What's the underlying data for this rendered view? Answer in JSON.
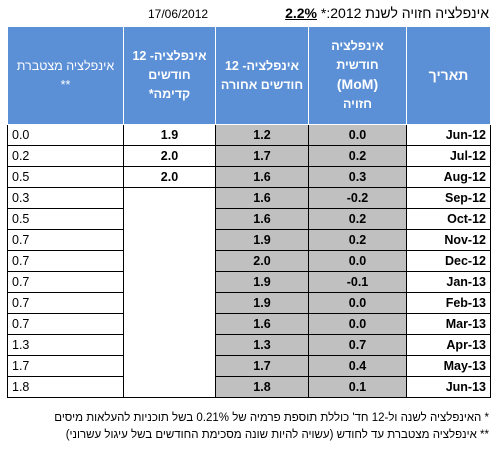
{
  "header": {
    "date": "17/06/2012",
    "title_text": "אינפלציה חזויה לשנת 2012:*",
    "title_pct": "2.2%"
  },
  "columns": {
    "cumulative": "אינפלציה מצטברת **",
    "forward12": "אינפלציה- 12 חודשים קדימה*",
    "back12": "אינפלציה- 12 חודשים אחורה",
    "mom_line1": "אינפלציה חודשית",
    "mom_line2": "(MoM)",
    "mom_line3": "חזויה",
    "date": "תאריך"
  },
  "rows": [
    {
      "cumulative": "0.0",
      "forward12": "1.9",
      "back12": "1.2",
      "mom": "0.0",
      "date": "Jun-12"
    },
    {
      "cumulative": "0.2",
      "forward12": "2.0",
      "back12": "1.7",
      "mom": "0.2",
      "date": "Jul-12"
    },
    {
      "cumulative": "0.5",
      "forward12": "2.0",
      "back12": "1.6",
      "mom": "0.3",
      "date": "Aug-12"
    },
    {
      "cumulative": "0.3",
      "forward12": "",
      "back12": "1.6",
      "mom": "-0.2",
      "date": "Sep-12"
    },
    {
      "cumulative": "0.5",
      "forward12": "",
      "back12": "1.6",
      "mom": "0.2",
      "date": "Oct-12"
    },
    {
      "cumulative": "0.7",
      "forward12": "",
      "back12": "1.9",
      "mom": "0.2",
      "date": "Nov-12"
    },
    {
      "cumulative": "0.7",
      "forward12": "",
      "back12": "2.0",
      "mom": "0.0",
      "date": "Dec-12"
    },
    {
      "cumulative": "0.7",
      "forward12": "",
      "back12": "1.9",
      "mom": "-0.1",
      "date": "Jan-13"
    },
    {
      "cumulative": "0.7",
      "forward12": "",
      "back12": "1.9",
      "mom": "0.0",
      "date": "Feb-13"
    },
    {
      "cumulative": "0.7",
      "forward12": "",
      "back12": "1.6",
      "mom": "0.0",
      "date": "Mar-13"
    },
    {
      "cumulative": "1.3",
      "forward12": "",
      "back12": "1.3",
      "mom": "0.7",
      "date": "Apr-13"
    },
    {
      "cumulative": "1.7",
      "forward12": "",
      "back12": "1.7",
      "mom": "0.4",
      "date": "May-13"
    },
    {
      "cumulative": "1.8",
      "forward12": "",
      "back12": "1.8",
      "mom": "0.1",
      "date": "Jun-13"
    }
  ],
  "notes": {
    "note1": "*  האינפלציה לשנה ול-12 חד' כוללת תוספת פרמיה של 0.21% בשל תוכניות להעלאות מיסים",
    "note2": "** אינפלציה מצטברת עד לחודש (עשויה להיות שונה מסכימת החודשים בשל עיגול עשרוני)"
  },
  "colors": {
    "header_bg": "#5b8fd6",
    "shaded_cells": "#c0c0c0"
  }
}
